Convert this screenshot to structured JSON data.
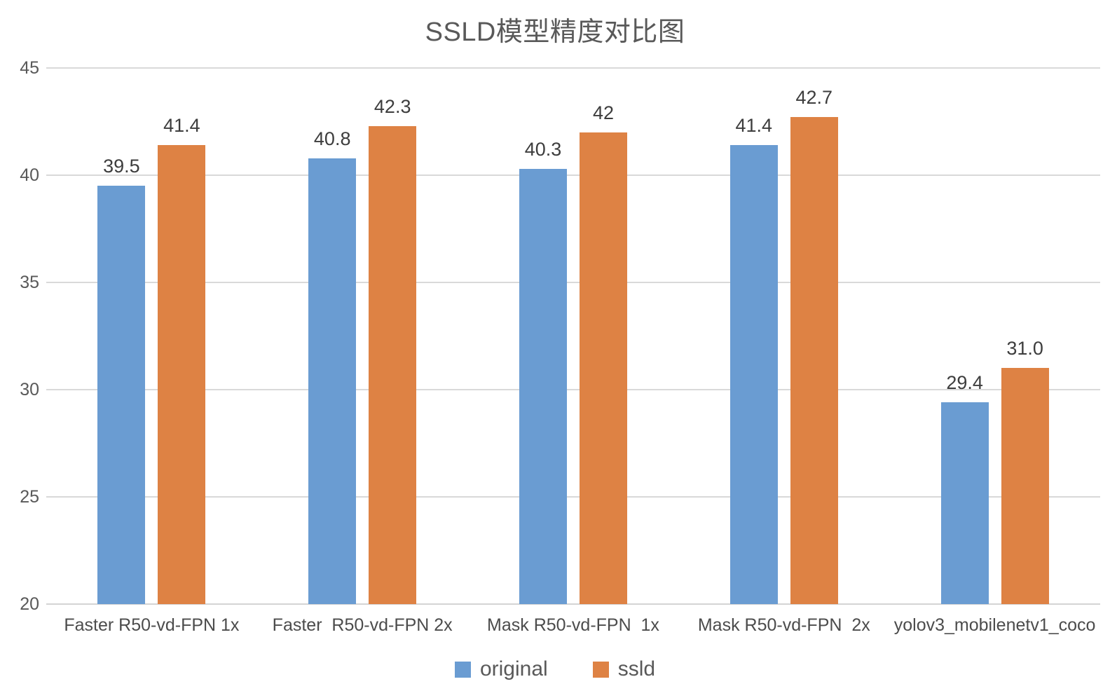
{
  "chart_data": {
    "type": "bar",
    "title": "SSLD模型精度对比图",
    "categories": [
      "Faster R50-vd-FPN 1x",
      "Faster  R50-vd-FPN 2x",
      "Mask R50-vd-FPN  1x",
      "Mask R50-vd-FPN  2x",
      "yolov3_mobilenetv1_coco"
    ],
    "series": [
      {
        "name": "original",
        "color": "#6a9cd2",
        "values": [
          39.5,
          40.8,
          40.3,
          41.4,
          29.4
        ],
        "labels": [
          "39.5",
          "40.8",
          "40.3",
          "41.4",
          "29.4"
        ]
      },
      {
        "name": "ssld",
        "color": "#de8244",
        "values": [
          41.4,
          42.3,
          42.0,
          42.7,
          31.0
        ],
        "labels": [
          "41.4",
          "42.3",
          "42",
          "42.7",
          "31.0"
        ]
      }
    ],
    "ylim": [
      20,
      45
    ],
    "yticks": [
      20,
      25,
      30,
      35,
      40,
      45
    ],
    "xlabel": "",
    "ylabel": "",
    "grid": true,
    "legend_position": "bottom",
    "colors": {
      "gridline": "#d9d9d9",
      "title_text": "#595959",
      "tick_text": "#595959",
      "value_label_text": "#3d3d3d"
    }
  }
}
